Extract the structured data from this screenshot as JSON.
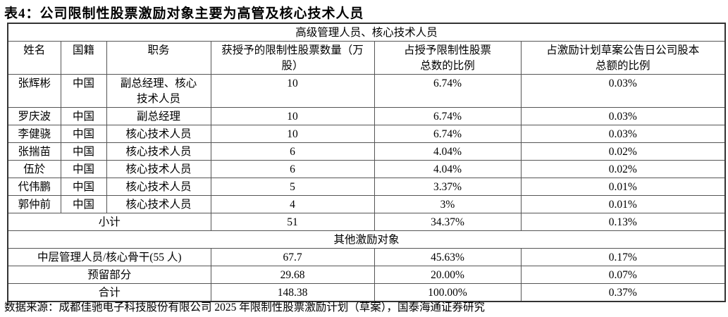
{
  "title": "表4：公司限制性股票激励对象主要为高管及核心技术人员",
  "section1": "高级管理人员、核心技术人员",
  "headers": [
    "姓名",
    "国籍",
    "职务",
    "获授予的限制性股票数量（万股）",
    "占授予限制性股票总数的比例",
    "占激励计划草案公告日公司股本总额的比例"
  ],
  "rows": [
    [
      "张辉彬",
      "中国",
      "副总经理、核心技术人员",
      "10",
      "6.74%",
      "0.03%"
    ],
    [
      "罗庆波",
      "中国",
      "副总经理",
      "10",
      "6.74%",
      "0.03%"
    ],
    [
      "李健骁",
      "中国",
      "核心技术人员",
      "10",
      "6.74%",
      "0.03%"
    ],
    [
      "张揣苗",
      "中国",
      "核心技术人员",
      "6",
      "4.04%",
      "0.02%"
    ],
    [
      "伍於",
      "中国",
      "核心技术人员",
      "6",
      "4.04%",
      "0.02%"
    ],
    [
      "代伟鹏",
      "中国",
      "核心技术人员",
      "5",
      "3.37%",
      "0.01%"
    ],
    [
      "郭仲前",
      "中国",
      "核心技术人员",
      "4",
      "3%",
      "0.01%"
    ]
  ],
  "subtotal": [
    "小计",
    "51",
    "34.37%",
    "0.13%"
  ],
  "section2": "其他激励对象",
  "other_rows": [
    [
      "中层管理人员/核心骨干(55 人)",
      "67.7",
      "45.63%",
      "0.17%"
    ],
    [
      "预留部分",
      "29.68",
      "20.00%",
      "0.07%"
    ],
    [
      "合计",
      "148.38",
      "100.00%",
      "0.37%"
    ]
  ],
  "source": "数据来源：成都佳驰电子科技股份有限公司 2025 年限制性股票激励计划（草案），国泰海通证券研究"
}
